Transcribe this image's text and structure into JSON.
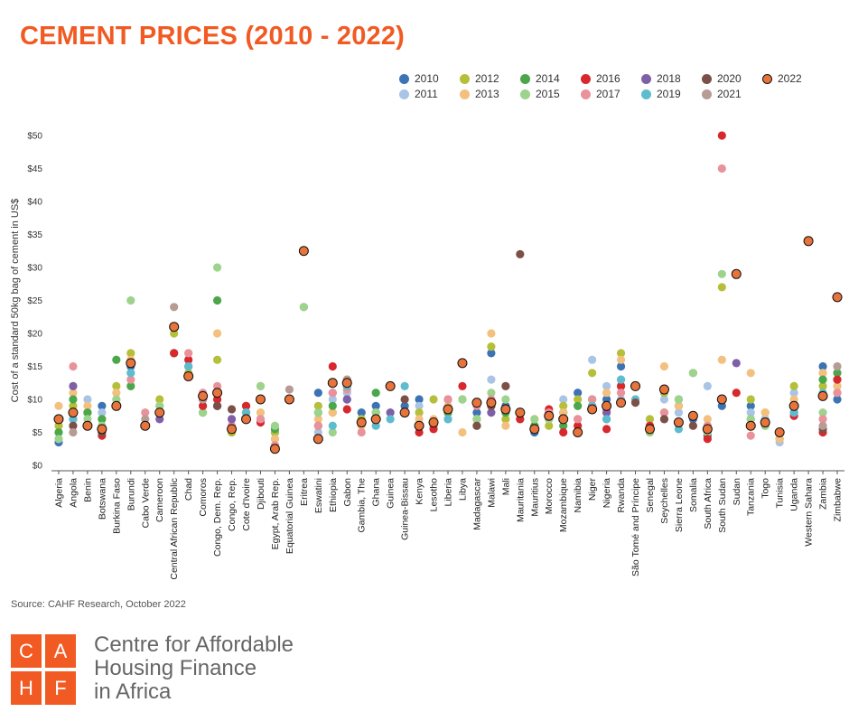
{
  "title": "CEMENT PRICES (2010 - 2022)",
  "source": "Source: CAHF Research, October 2022",
  "logo": {
    "letters": [
      "C",
      "A",
      "H",
      "F"
    ]
  },
  "org": {
    "line1": "Centre for Affordable",
    "line2": "Housing Finance",
    "line3": "in Africa"
  },
  "chart_data": {
    "type": "scatter",
    "title": "CEMENT PRICES (2010 - 2022)",
    "ylabel": "Cost of a standard 50kg bag of cement in US$",
    "ylim": [
      0,
      50
    ],
    "yticks": [
      0,
      5,
      10,
      15,
      20,
      25,
      30,
      35,
      40,
      45,
      50
    ],
    "ytick_labels": [
      "$0",
      "$5",
      "$10",
      "$15",
      "$20",
      "$25",
      "$30",
      "$35",
      "$40",
      "$45",
      "$50"
    ],
    "legend_position": "top-right",
    "series": [
      {
        "name": "2010",
        "color": "#3b73b4"
      },
      {
        "name": "2011",
        "color": "#a9c4e6"
      },
      {
        "name": "2012",
        "color": "#b5bf3a"
      },
      {
        "name": "2013",
        "color": "#f3c07f"
      },
      {
        "name": "2014",
        "color": "#4ca64a"
      },
      {
        "name": "2015",
        "color": "#9ed38e"
      },
      {
        "name": "2016",
        "color": "#d7282e"
      },
      {
        "name": "2017",
        "color": "#e9929b"
      },
      {
        "name": "2018",
        "color": "#7f5fa8"
      },
      {
        "name": "2019",
        "color": "#5ebccf"
      },
      {
        "name": "2020",
        "color": "#7b5047"
      },
      {
        "name": "2021",
        "color": "#b79b95"
      },
      {
        "name": "2022",
        "color": "#e8743b"
      }
    ],
    "countries": [
      {
        "name": "Algeria",
        "values": [
          3.5,
          4,
          6,
          9,
          5,
          4,
          null,
          null,
          null,
          null,
          null,
          null,
          7
        ]
      },
      {
        "name": "Angola",
        "values": [
          7,
          8,
          9,
          11,
          10,
          12,
          null,
          15,
          12,
          7,
          6,
          5,
          8
        ]
      },
      {
        "name": "Benin",
        "values": [
          6,
          10,
          8,
          9,
          8,
          7,
          null,
          null,
          null,
          null,
          null,
          6,
          6
        ]
      },
      {
        "name": "Botswana",
        "values": [
          9,
          8,
          7,
          6,
          7,
          6,
          4.5,
          null,
          null,
          5,
          5,
          null,
          5.5
        ]
      },
      {
        "name": "Burkina Faso",
        "values": [
          9,
          10,
          12,
          11,
          16,
          10,
          null,
          null,
          null,
          null,
          null,
          null,
          9
        ]
      },
      {
        "name": "Burundi",
        "values": [
          15,
          14,
          17,
          16,
          12,
          25,
          null,
          13,
          null,
          14,
          null,
          null,
          15.5
        ]
      },
      {
        "name": "Cabo Verde",
        "values": [
          6,
          null,
          null,
          null,
          null,
          null,
          null,
          8,
          null,
          null,
          null,
          7,
          6
        ]
      },
      {
        "name": "Cameroon",
        "values": [
          8,
          9,
          10,
          9,
          8,
          9,
          null,
          null,
          7,
          null,
          null,
          null,
          8
        ]
      },
      {
        "name": "Central African Republic",
        "values": [
          17,
          17,
          20,
          21,
          17,
          17,
          17,
          null,
          null,
          null,
          null,
          24,
          21
        ]
      },
      {
        "name": "Chad",
        "values": [
          15,
          15,
          14,
          17,
          null,
          null,
          16,
          17,
          null,
          15,
          null,
          null,
          13.5
        ]
      },
      {
        "name": "Comoros",
        "values": [
          10,
          9,
          10,
          9,
          8,
          8,
          9,
          11,
          null,
          null,
          10,
          10,
          10.5
        ]
      },
      {
        "name": "Congo, Dem. Rep.",
        "values": [
          9,
          10,
          16,
          20,
          25,
          30,
          10,
          12,
          9,
          null,
          9,
          null,
          11
        ]
      },
      {
        "name": "Congo, Rep.",
        "values": [
          5,
          6,
          5,
          7,
          null,
          null,
          null,
          6,
          7,
          null,
          8.5,
          null,
          5.5
        ]
      },
      {
        "name": "Cote d'Ivoire",
        "values": [
          7,
          8,
          7,
          8,
          9,
          9,
          9,
          8,
          null,
          8,
          null,
          null,
          7
        ]
      },
      {
        "name": "Djibouti",
        "values": [
          7,
          7,
          12,
          8,
          null,
          12,
          6.5,
          7,
          null,
          null,
          null,
          null,
          10
        ]
      },
      {
        "name": "Egypt, Arab Rep.",
        "values": [
          5,
          4,
          5,
          4,
          5.5,
          6,
          3,
          3,
          null,
          null,
          null,
          2.5,
          2.5
        ]
      },
      {
        "name": "Equatorial Guinea",
        "values": [
          null,
          null,
          null,
          null,
          null,
          null,
          null,
          null,
          null,
          null,
          null,
          11.5,
          10
        ]
      },
      {
        "name": "Eritrea",
        "values": [
          null,
          null,
          null,
          null,
          24,
          24,
          null,
          32.5,
          null,
          null,
          null,
          null,
          32.5
        ]
      },
      {
        "name": "Eswatini",
        "values": [
          11,
          5,
          9,
          7,
          8,
          8,
          6,
          6,
          null,
          null,
          null,
          null,
          4
        ]
      },
      {
        "name": "Ethiopia",
        "values": [
          11,
          10,
          8,
          8,
          9,
          5,
          15,
          11,
          null,
          6,
          null,
          null,
          12.5
        ]
      },
      {
        "name": "Gabon",
        "values": [
          12,
          11,
          12,
          13,
          10,
          13,
          8.5,
          11.5,
          10,
          12,
          null,
          13,
          12.5
        ]
      },
      {
        "name": "Gambia, The",
        "values": [
          8,
          7,
          7,
          6,
          null,
          null,
          null,
          5,
          null,
          null,
          null,
          null,
          6.5
        ]
      },
      {
        "name": "Ghana",
        "values": [
          9,
          8,
          8,
          7,
          11,
          8,
          null,
          7,
          null,
          6,
          null,
          null,
          7
        ]
      },
      {
        "name": "Guinea",
        "values": [
          12,
          null,
          null,
          null,
          null,
          null,
          null,
          null,
          8,
          7,
          null,
          12,
          12
        ]
      },
      {
        "name": "Guinea-Bissau",
        "values": [
          9,
          null,
          null,
          null,
          null,
          null,
          8,
          null,
          null,
          12,
          10,
          null,
          8
        ]
      },
      {
        "name": "Kenya",
        "values": [
          10,
          9,
          8,
          7,
          6,
          6,
          5,
          6,
          null,
          null,
          null,
          null,
          6
        ]
      },
      {
        "name": "Lesotho",
        "values": [
          6,
          6,
          10,
          7,
          6,
          6,
          5.5,
          null,
          null,
          null,
          null,
          null,
          6.5
        ]
      },
      {
        "name": "Liberia",
        "values": [
          8,
          7,
          8,
          9,
          8,
          7,
          10,
          10,
          null,
          7,
          null,
          null,
          8.5
        ]
      },
      {
        "name": "Libya",
        "values": [
          null,
          null,
          null,
          5,
          10,
          10,
          12,
          null,
          null,
          null,
          null,
          null,
          15.5
        ]
      },
      {
        "name": "Madagascar",
        "values": [
          8,
          7,
          7,
          7,
          6,
          7,
          null,
          9,
          null,
          null,
          6,
          null,
          9.5
        ]
      },
      {
        "name": "Malawi",
        "values": [
          17,
          13,
          18,
          20,
          9,
          11,
          9,
          10,
          8,
          null,
          9,
          null,
          9.5
        ]
      },
      {
        "name": "Mali",
        "values": [
          9,
          8,
          7,
          6,
          8,
          10,
          null,
          12,
          null,
          null,
          12,
          null,
          8.5
        ]
      },
      {
        "name": "Mauritania",
        "values": [
          8,
          7,
          7,
          7,
          8,
          7,
          7,
          null,
          null,
          null,
          32,
          null,
          8
        ]
      },
      {
        "name": "Mauritius",
        "values": [
          5,
          6,
          6,
          7,
          6,
          7,
          null,
          null,
          null,
          null,
          null,
          null,
          5.5
        ]
      },
      {
        "name": "Morocco",
        "values": [
          7,
          8,
          6,
          7,
          8,
          7,
          8.5,
          8,
          null,
          null,
          null,
          null,
          7.5
        ]
      },
      {
        "name": "Mozambique",
        "values": [
          8,
          10,
          9,
          8,
          6,
          7,
          5,
          7,
          null,
          null,
          null,
          null,
          7
        ]
      },
      {
        "name": "Namibia",
        "values": [
          11,
          9,
          10,
          7,
          9,
          7,
          6,
          7,
          null,
          null,
          null,
          null,
          5
        ]
      },
      {
        "name": "Niger",
        "values": [
          9,
          16,
          14,
          10,
          10,
          10,
          9,
          10,
          null,
          9,
          null,
          null,
          8.5
        ]
      },
      {
        "name": "Nigeria",
        "values": [
          10,
          12,
          9,
          11,
          7,
          9,
          5.5,
          8.5,
          8,
          7,
          null,
          null,
          9
        ]
      },
      {
        "name": "Rwanda",
        "values": [
          15,
          10,
          17,
          16,
          12,
          13,
          12,
          11,
          null,
          13,
          null,
          null,
          9.5
        ]
      },
      {
        "name": "São Tomé and Príncipe",
        "values": [
          12,
          null,
          null,
          10,
          null,
          null,
          null,
          null,
          null,
          10,
          9.5,
          null,
          12
        ]
      },
      {
        "name": "Senegal",
        "values": [
          6,
          6,
          7,
          6,
          5,
          5,
          6,
          null,
          null,
          null,
          null,
          null,
          5.5
        ]
      },
      {
        "name": "Seychelles",
        "values": [
          11,
          10,
          11,
          15,
          8,
          7,
          null,
          8,
          null,
          null,
          7,
          null,
          11.5
        ]
      },
      {
        "name": "Sierra Leone",
        "values": [
          9,
          8,
          9,
          9,
          10,
          10,
          null,
          null,
          null,
          5.5,
          6.5,
          null,
          6.5
        ]
      },
      {
        "name": "Somalia",
        "values": [
          7,
          null,
          null,
          null,
          14,
          14,
          null,
          null,
          null,
          null,
          6,
          null,
          7.5
        ]
      },
      {
        "name": "South Africa",
        "values": [
          4.5,
          12,
          6,
          7,
          5,
          5,
          4,
          6,
          null,
          null,
          null,
          null,
          5.5
        ]
      },
      {
        "name": "South Sudan",
        "values": [
          9,
          null,
          27,
          16,
          null,
          29,
          50,
          45,
          null,
          null,
          null,
          null,
          10
        ]
      },
      {
        "name": "Sudan",
        "values": [
          null,
          null,
          null,
          null,
          null,
          null,
          11,
          null,
          15.5,
          null,
          null,
          null,
          29
        ]
      },
      {
        "name": "Tanzania",
        "values": [
          9,
          8,
          10,
          14,
          7,
          7,
          6,
          4.5,
          null,
          null,
          null,
          null,
          6
        ]
      },
      {
        "name": "Togo",
        "values": [
          7,
          7,
          8,
          8,
          6,
          6,
          null,
          null,
          null,
          null,
          null,
          null,
          6.5
        ]
      },
      {
        "name": "Tunisia",
        "values": [
          4,
          3.5,
          4,
          4,
          null,
          null,
          null,
          null,
          null,
          null,
          null,
          null,
          5
        ]
      },
      {
        "name": "Uganda",
        "values": [
          8,
          11,
          12,
          10,
          9,
          9,
          7.5,
          8,
          null,
          8,
          null,
          null,
          9
        ]
      },
      {
        "name": "Western Sahara",
        "values": [
          null,
          null,
          null,
          null,
          null,
          null,
          null,
          null,
          null,
          null,
          null,
          null,
          34
        ]
      },
      {
        "name": "Zambia",
        "values": [
          15,
          14,
          12,
          14,
          13,
          8,
          5,
          7,
          null,
          11,
          5.5,
          6,
          10.5
        ]
      },
      {
        "name": "Zimbabwe",
        "values": [
          10,
          12,
          11,
          12,
          14,
          13,
          13,
          11,
          null,
          null,
          null,
          15,
          25.5
        ]
      }
    ]
  }
}
